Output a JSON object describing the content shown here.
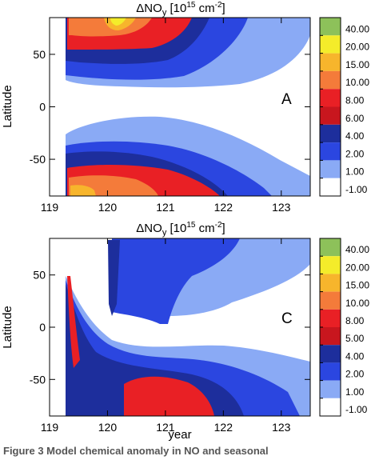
{
  "chart_data": [
    {
      "type": "heatmap",
      "panel_label": "A",
      "title_main": "ΔNO",
      "title_sub": "y",
      "title_unit": " [10",
      "title_exp": "15",
      "title_unit2": " cm",
      "title_exp2": "-2",
      "title_close": "]",
      "ylabel": "Latitude",
      "xlabel": "",
      "xlim": [
        119,
        123.5
      ],
      "ylim": [
        -85,
        85
      ],
      "xticks": [
        "119",
        "120",
        "121",
        "122",
        "123"
      ],
      "yticks": [
        "50",
        "0",
        "-50"
      ],
      "colorbar": {
        "levels": [
          "40.00",
          "20.00",
          "15.00",
          "10.00",
          "8.00",
          "6.00",
          "4.00",
          "2.00",
          "1.00",
          "-1.00"
        ],
        "colors": [
          "#8dc15a",
          "#f4ec2a",
          "#f7b52c",
          "#f47b3a",
          "#e92025",
          "#c8161e",
          "#1d2e9c",
          "#2b46e0",
          "#8aaaf5",
          "#ffffff"
        ]
      }
    },
    {
      "type": "heatmap",
      "panel_label": "C",
      "title_main": "ΔNO",
      "title_sub": "y",
      "title_unit": " [10",
      "title_exp": "15",
      "title_unit2": " cm",
      "title_exp2": "-2",
      "title_close": "]",
      "ylabel": "Latitude",
      "xlabel": "year",
      "xlim": [
        119,
        123.5
      ],
      "ylim": [
        -85,
        85
      ],
      "xticks": [
        "119",
        "120",
        "121",
        "122",
        "123"
      ],
      "yticks": [
        "50",
        "0",
        "-50"
      ],
      "colorbar": {
        "levels": [
          "40.00",
          "20.00",
          "15.00",
          "10.00",
          "8.00",
          "5.00",
          "4.00",
          "2.00",
          "1.00",
          "-1.00"
        ],
        "colors": [
          "#8dc15a",
          "#f4ec2a",
          "#f7b52c",
          "#f47b3a",
          "#e92025",
          "#c8161e",
          "#1d2e9c",
          "#2b46e0",
          "#8aaaf5",
          "#ffffff"
        ]
      }
    }
  ],
  "caption": {
    "text": "Figure 3 Model chemical anomaly in NO and seasonal"
  }
}
